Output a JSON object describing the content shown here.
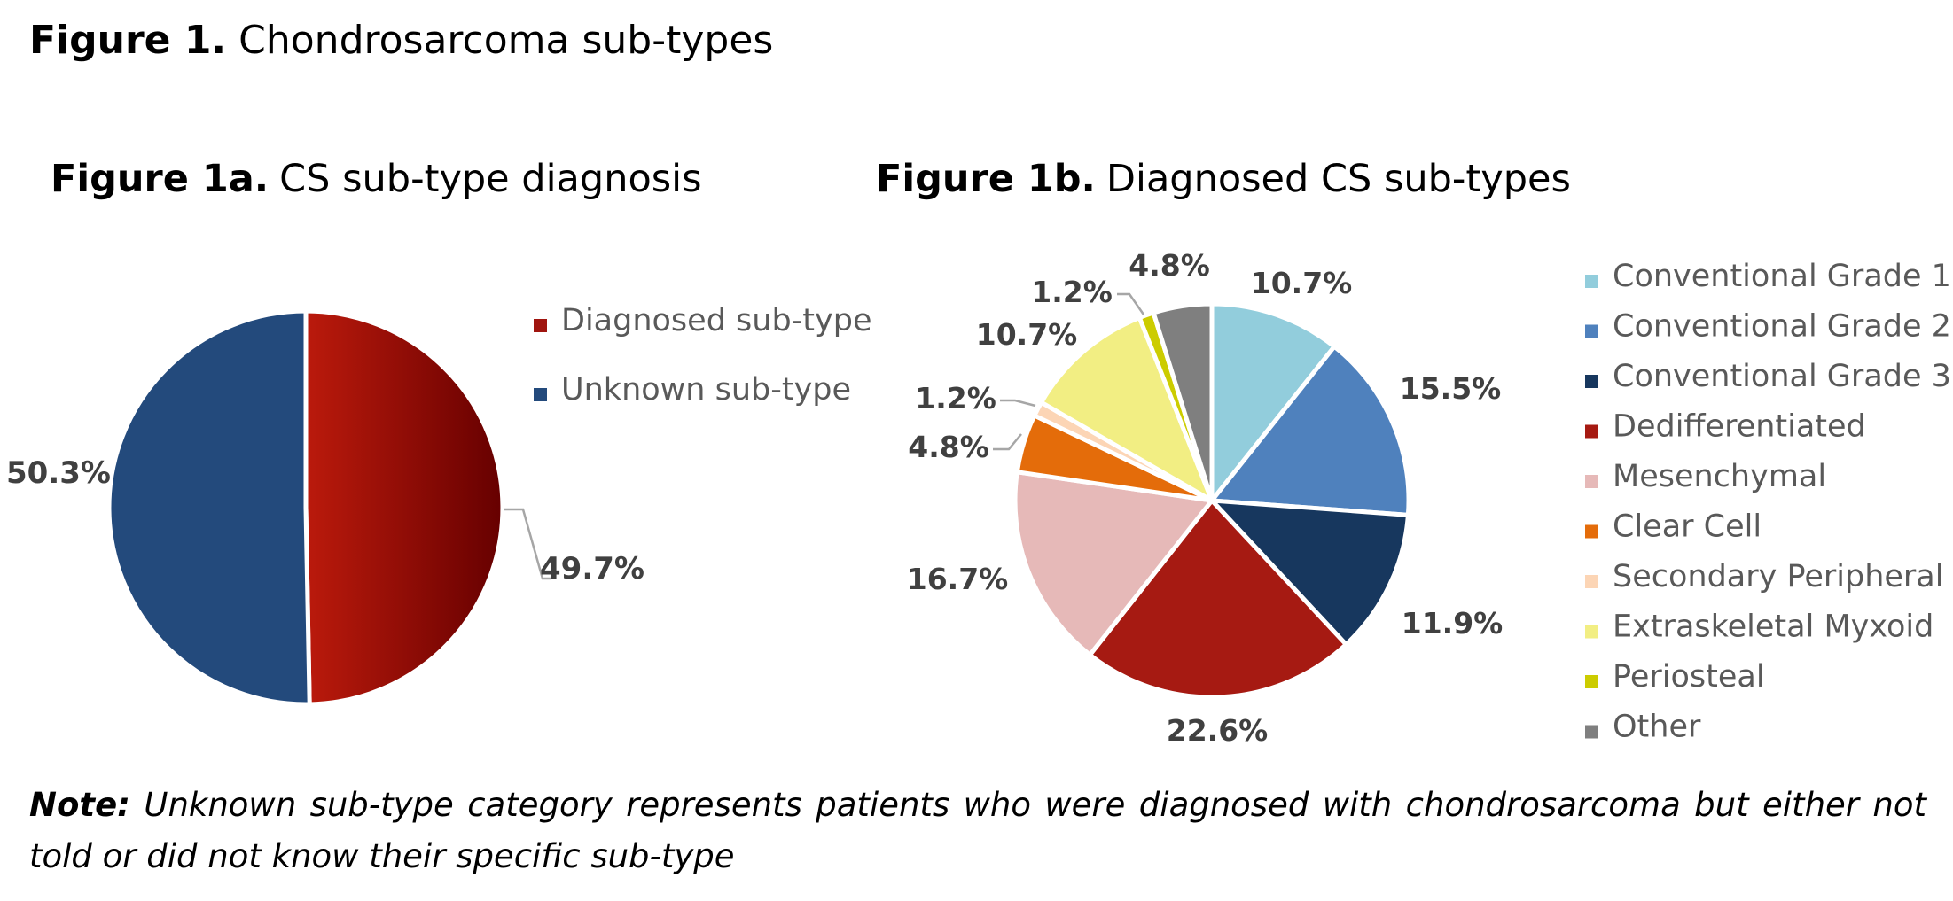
{
  "figure": {
    "title_bold": "Figure 1.",
    "title_text": "Chondrosarcoma sub-types",
    "note_bold": "Note:",
    "note_text": "Unknown sub-type category represents patients who were diagnosed with chondrosarcoma but either not told or did not know their specific sub-type"
  },
  "chart_data": [
    {
      "type": "pie",
      "title_bold": "Figure 1a.",
      "title_text": "CS sub-type diagnosis",
      "legend_position": "right",
      "slices": [
        {
          "label": "Diagnosed sub-type",
          "value": 49.7,
          "display": "49.7%",
          "color": "#a0150f"
        },
        {
          "label": "Unknown sub-type",
          "value": 50.3,
          "display": "50.3%",
          "color": "#234a7c"
        }
      ]
    },
    {
      "type": "pie",
      "title_bold": "Figure 1b.",
      "title_text": "Diagnosed CS sub-types",
      "legend_position": "right",
      "slices": [
        {
          "label": "Conventional Grade 1",
          "value": 10.7,
          "display": "10.7%",
          "color": "#92cddc"
        },
        {
          "label": "Conventional Grade 2",
          "value": 15.5,
          "display": "15.5%",
          "color": "#4f81bd"
        },
        {
          "label": "Conventional Grade 3",
          "value": 11.9,
          "display": "11.9%",
          "color": "#17375e"
        },
        {
          "label": "Dedifferentiated",
          "value": 22.6,
          "display": "22.6%",
          "color": "#a61a12"
        },
        {
          "label": "Mesenchymal",
          "value": 16.7,
          "display": "16.7%",
          "color": "#e6b9b8"
        },
        {
          "label": "Clear Cell",
          "value": 4.8,
          "display": "4.8%",
          "color": "#e46c0a"
        },
        {
          "label": "Secondary Peripheral",
          "value": 1.2,
          "display": "1.2%",
          "color": "#fcd5b5"
        },
        {
          "label": "Extraskeletal Myxoid",
          "value": 10.7,
          "display": "10.7%",
          "color": "#f2ee83"
        },
        {
          "label": "Periosteal",
          "value": 1.2,
          "display": "1.2%",
          "color": "#cccc00"
        },
        {
          "label": "Other",
          "value": 4.8,
          "display": "4.8%",
          "color": "#7f7f7f"
        }
      ]
    }
  ]
}
